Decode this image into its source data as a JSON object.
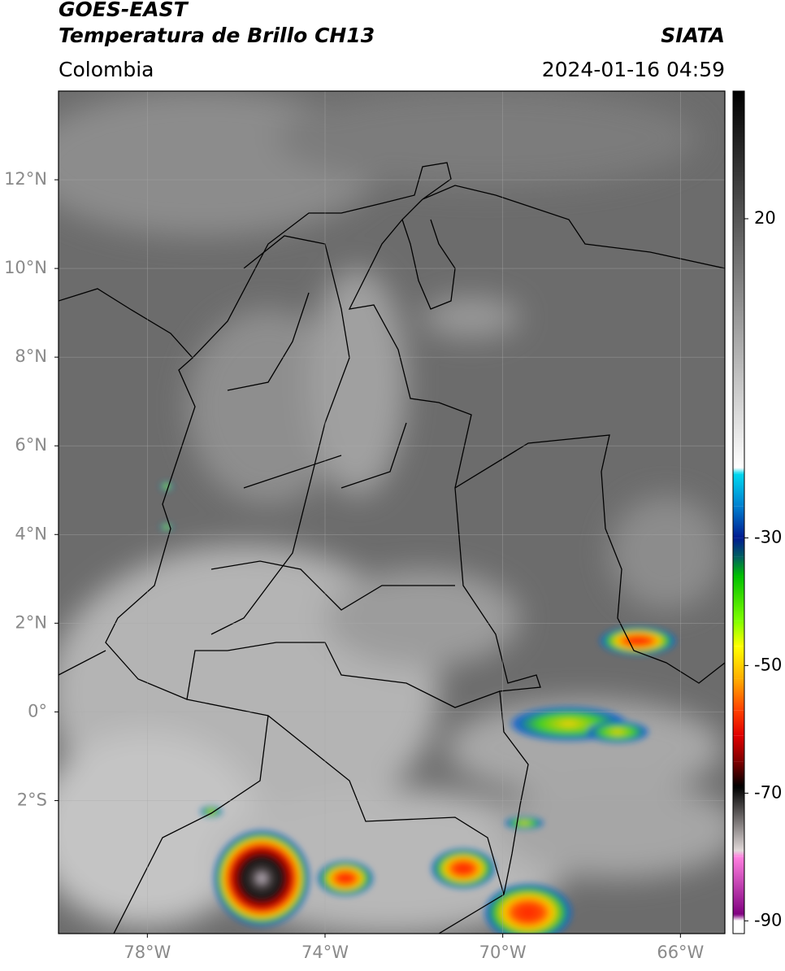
{
  "header": {
    "title": "GOES-EAST",
    "subtitle": "Temperatura de Brillo CH13",
    "source": "SIATA",
    "region": "Colombia",
    "datetime": "2024-01-16 04:59"
  },
  "map": {
    "lon_range": [
      -80,
      -65
    ],
    "lat_range": [
      -5,
      14
    ],
    "grid": true,
    "lon_ticks": [
      {
        "value": -78,
        "label": "78°W"
      },
      {
        "value": -74,
        "label": "74°W"
      },
      {
        "value": -70,
        "label": "70°W"
      },
      {
        "value": -66,
        "label": "66°W"
      }
    ],
    "lat_ticks": [
      {
        "value": 12,
        "label": "12°N"
      },
      {
        "value": 10,
        "label": "10°N"
      },
      {
        "value": 8,
        "label": "8°N"
      },
      {
        "value": 6,
        "label": "6°N"
      },
      {
        "value": 4,
        "label": "4°N"
      },
      {
        "value": 2,
        "label": "2°N"
      },
      {
        "value": 0,
        "label": "0°"
      },
      {
        "value": -2,
        "label": "2°S"
      }
    ]
  },
  "colorbar": {
    "range": [
      -92,
      40
    ],
    "ticks": [
      20,
      -30,
      -50,
      -70,
      -90
    ],
    "stops": [
      {
        "value": 40,
        "color": "#000000"
      },
      {
        "value": -19,
        "color": "#ffffff"
      },
      {
        "value": -20,
        "color": "#00d8f0"
      },
      {
        "value": -25,
        "color": "#0080d0"
      },
      {
        "value": -30,
        "color": "#001a90"
      },
      {
        "value": -33,
        "color": "#006060"
      },
      {
        "value": -36,
        "color": "#00c000"
      },
      {
        "value": -43,
        "color": "#80ff00"
      },
      {
        "value": -47,
        "color": "#ffff00"
      },
      {
        "value": -52,
        "color": "#ffb000"
      },
      {
        "value": -57,
        "color": "#ff4000"
      },
      {
        "value": -61,
        "color": "#e00000"
      },
      {
        "value": -65,
        "color": "#800000"
      },
      {
        "value": -69,
        "color": "#000000"
      },
      {
        "value": -79,
        "color": "#e0d8d8"
      },
      {
        "value": -80,
        "color": "#ff80e0"
      },
      {
        "value": -89,
        "color": "#800080"
      },
      {
        "value": -90,
        "color": "#ffffff"
      },
      {
        "value": -92,
        "color": "#ffffff"
      }
    ]
  }
}
